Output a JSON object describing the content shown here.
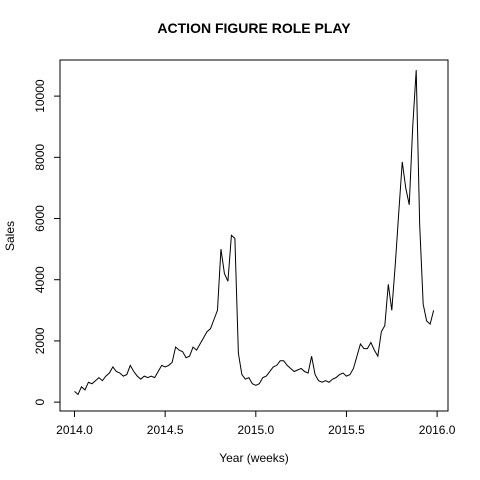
{
  "chart_data": {
    "type": "line",
    "title": "ACTION FIGURE ROLE PLAY",
    "x_label": "Year (weeks)",
    "y_label": "Sales",
    "x": [
      2014,
      2014.0192,
      2014.0385,
      2014.0577,
      2014.0769,
      2014.0962,
      2014.1154,
      2014.1346,
      2014.1538,
      2014.1731,
      2014.1923,
      2014.2115,
      2014.2308,
      2014.25,
      2014.2692,
      2014.2885,
      2014.3077,
      2014.3269,
      2014.3462,
      2014.3654,
      2014.3846,
      2014.4038,
      2014.4231,
      2014.4423,
      2014.4615,
      2014.4808,
      2014.5,
      2014.5192,
      2014.5385,
      2014.5577,
      2014.5769,
      2014.5962,
      2014.6154,
      2014.6346,
      2014.6538,
      2014.6731,
      2014.6923,
      2014.7115,
      2014.7308,
      2014.75,
      2014.7692,
      2014.7885,
      2014.8077,
      2014.8269,
      2014.8462,
      2014.8654,
      2014.8846,
      2014.9038,
      2014.9231,
      2014.9423,
      2014.9615,
      2014.9808,
      2015,
      2015.0192,
      2015.0385,
      2015.0577,
      2015.0769,
      2015.0962,
      2015.1154,
      2015.1346,
      2015.1538,
      2015.1731,
      2015.1923,
      2015.2115,
      2015.2308,
      2015.25,
      2015.2692,
      2015.2885,
      2015.3077,
      2015.3269,
      2015.3462,
      2015.3654,
      2015.3846,
      2015.4038,
      2015.4231,
      2015.4423,
      2015.4615,
      2015.4808,
      2015.5,
      2015.5192,
      2015.5385,
      2015.5577,
      2015.5769,
      2015.5962,
      2015.6154,
      2015.6346,
      2015.6538,
      2015.6731,
      2015.6923,
      2015.7115,
      2015.7308,
      2015.75,
      2015.7692,
      2015.7885,
      2015.8077,
      2015.8269,
      2015.8462,
      2015.8654,
      2015.8846,
      2015.9038,
      2015.9231,
      2015.9423,
      2015.9615,
      2015.9808
    ],
    "series": [
      {
        "name": "Sales",
        "color": "#000000",
        "values": [
          350,
          250,
          500,
          400,
          650,
          600,
          700,
          800,
          700,
          850,
          950,
          1150,
          1000,
          950,
          850,
          900,
          1200,
          1000,
          850,
          750,
          850,
          800,
          850,
          800,
          1000,
          1200,
          1150,
          1200,
          1300,
          1800,
          1700,
          1650,
          1450,
          1500,
          1800,
          1700,
          1900,
          2100,
          2300,
          2400,
          2700,
          3000,
          5000,
          4200,
          3950,
          5450,
          5350,
          1600,
          900,
          750,
          800,
          600,
          550,
          600,
          800,
          850,
          1000,
          1150,
          1200,
          1350,
          1350,
          1200,
          1100,
          1000,
          1050,
          1100,
          1000,
          950,
          1500,
          900,
          700,
          650,
          700,
          650,
          750,
          800,
          900,
          950,
          850,
          900,
          1100,
          1500,
          1900,
          1750,
          1750,
          1950,
          1700,
          1500,
          2300,
          2500,
          3850,
          3000,
          4500,
          6200,
          7850,
          7000,
          6450,
          9000,
          10850,
          5800,
          3200,
          2650,
          2550,
          3000
        ]
      }
    ],
    "xlim": [
      2013.92,
      2016.06
    ],
    "ylim": [
      -290,
      11180
    ],
    "xticks": [
      {
        "value": 2014,
        "label": "2014.0"
      },
      2014.5,
      {
        "value": 2015,
        "label": "2015.0"
      },
      2015.5,
      {
        "value": 2016,
        "label": "2016.0"
      }
    ],
    "yticks": [
      0,
      2000,
      4000,
      6000,
      8000,
      10000
    ]
  }
}
